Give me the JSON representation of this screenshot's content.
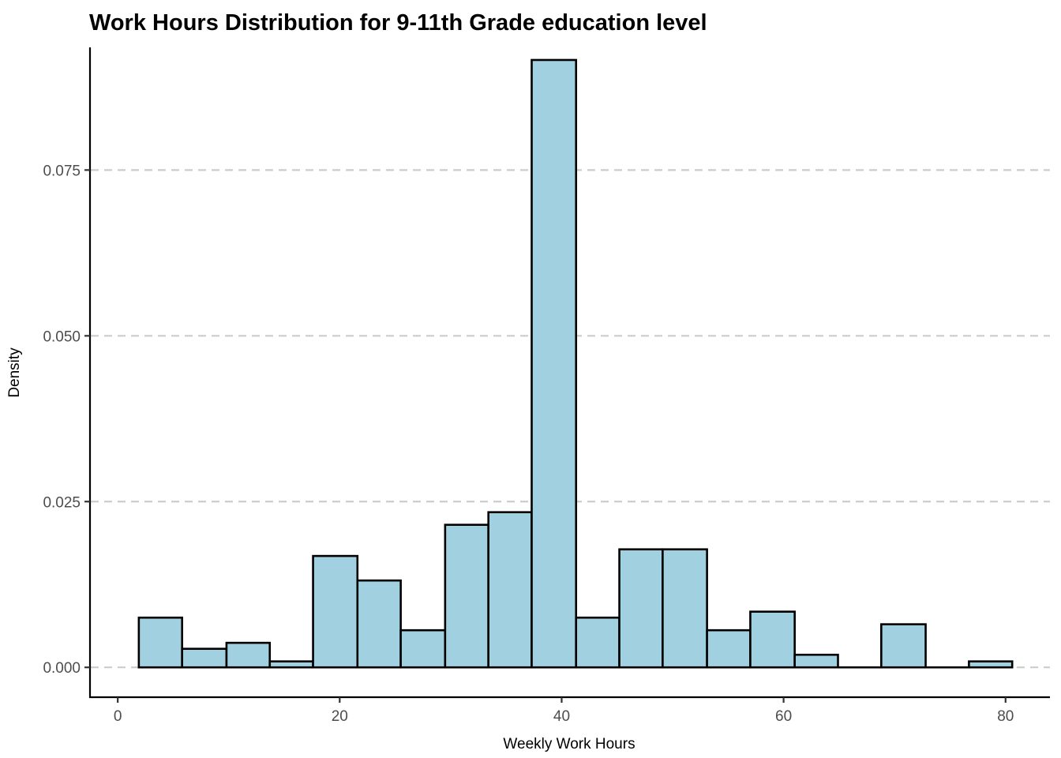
{
  "chart_data": {
    "type": "bar",
    "title": "Work Hours Distribution for 9-11th Grade education level",
    "xlabel": "Weekly Work Hours",
    "ylabel": "Density",
    "xlim": [
      -2.5,
      84
    ],
    "ylim": [
      -0.0045,
      0.0935
    ],
    "x_ticks": [
      0,
      20,
      40,
      60,
      80
    ],
    "x_tick_labels": [
      "0",
      "20",
      "40",
      "60",
      "80"
    ],
    "y_ticks": [
      0,
      0.025,
      0.05,
      0.075
    ],
    "y_tick_labels": [
      "0.000",
      "0.025",
      "0.050",
      "0.075"
    ],
    "grid": "horizontal dashed at y ticks",
    "bar_fill": "#a1d0e0",
    "bar_outline": "#000000",
    "bins": [
      {
        "x0": 1.9,
        "x1": 5.8,
        "density": 0.0075
      },
      {
        "x0": 5.8,
        "x1": 9.8,
        "density": 0.0028
      },
      {
        "x0": 9.8,
        "x1": 13.7,
        "density": 0.0037
      },
      {
        "x0": 13.7,
        "x1": 17.6,
        "density": 0.0009
      },
      {
        "x0": 17.6,
        "x1": 21.6,
        "density": 0.0168
      },
      {
        "x0": 21.6,
        "x1": 25.5,
        "density": 0.0131
      },
      {
        "x0": 25.5,
        "x1": 29.5,
        "density": 0.0056
      },
      {
        "x0": 29.5,
        "x1": 33.4,
        "density": 0.0215
      },
      {
        "x0": 33.4,
        "x1": 37.3,
        "density": 0.0234
      },
      {
        "x0": 37.3,
        "x1": 41.3,
        "density": 0.0916
      },
      {
        "x0": 41.3,
        "x1": 45.2,
        "density": 0.0075
      },
      {
        "x0": 45.2,
        "x1": 49.1,
        "density": 0.0178
      },
      {
        "x0": 49.1,
        "x1": 53.1,
        "density": 0.0178
      },
      {
        "x0": 53.1,
        "x1": 57.0,
        "density": 0.0056
      },
      {
        "x0": 57.0,
        "x1": 61.0,
        "density": 0.0084
      },
      {
        "x0": 61.0,
        "x1": 64.9,
        "density": 0.0019
      },
      {
        "x0": 64.9,
        "x1": 68.8,
        "density": 0.0
      },
      {
        "x0": 68.8,
        "x1": 72.8,
        "density": 0.0065
      },
      {
        "x0": 72.8,
        "x1": 76.7,
        "density": 0.0
      },
      {
        "x0": 76.7,
        "x1": 80.6,
        "density": 0.0009
      }
    ]
  }
}
